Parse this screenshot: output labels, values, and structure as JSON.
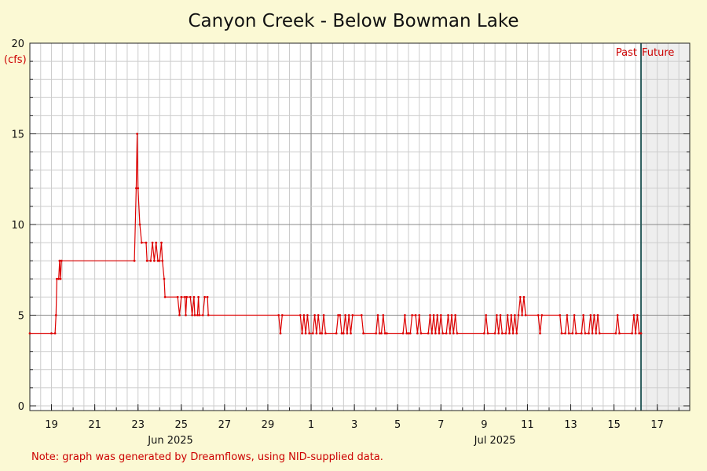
{
  "chart_data": {
    "type": "line",
    "title": "Canyon Creek - Below Bowman Lake",
    "ylabel": "(cfs)",
    "ylim": [
      0,
      20
    ],
    "yticks": [
      0,
      5,
      10,
      15,
      20
    ],
    "x_start": "2025-06-18",
    "x_end": "2025-07-18T12:00",
    "now": "2025-07-16T06:00",
    "past_label": "Past",
    "future_label": "Future",
    "x_tick_dates": [
      "2025-06-19",
      "2025-06-21",
      "2025-06-23",
      "2025-06-25",
      "2025-06-27",
      "2025-06-29",
      "2025-07-01",
      "2025-07-03",
      "2025-07-05",
      "2025-07-07",
      "2025-07-09",
      "2025-07-11",
      "2025-07-13",
      "2025-07-15",
      "2025-07-17"
    ],
    "x_tick_labels": [
      "19",
      "21",
      "23",
      "25",
      "27",
      "29",
      "1",
      "3",
      "5",
      "7",
      "9",
      "11",
      "13",
      "15",
      "17"
    ],
    "month_labels": [
      {
        "date": "2025-06-24T12:00",
        "label": "Jun 2025"
      },
      {
        "date": "2025-07-09T12:00",
        "label": "Jul 2025"
      }
    ],
    "grid": true,
    "series": [
      {
        "color": "#dd0000",
        "points": [
          [
            "2025-06-18T00:00",
            4
          ],
          [
            "2025-06-19T00:00",
            4
          ],
          [
            "2025-06-19T04:00",
            4
          ],
          [
            "2025-06-19T05:00",
            5
          ],
          [
            "2025-06-19T06:00",
            7
          ],
          [
            "2025-06-19T08:00",
            7
          ],
          [
            "2025-06-19T09:00",
            8
          ],
          [
            "2025-06-19T10:00",
            7
          ],
          [
            "2025-06-19T11:00",
            8
          ],
          [
            "2025-06-22T20:00",
            8
          ],
          [
            "2025-06-22T22:00",
            12
          ],
          [
            "2025-06-22T23:00",
            15
          ],
          [
            "2025-06-23T00:00",
            12
          ],
          [
            "2025-06-23T02:00",
            10
          ],
          [
            "2025-06-23T04:00",
            9
          ],
          [
            "2025-06-23T09:00",
            9
          ],
          [
            "2025-06-23T10:00",
            8
          ],
          [
            "2025-06-23T14:00",
            8
          ],
          [
            "2025-06-23T16:00",
            9
          ],
          [
            "2025-06-23T18:00",
            8
          ],
          [
            "2025-06-23T20:00",
            9
          ],
          [
            "2025-06-23T22:00",
            8
          ],
          [
            "2025-06-24T00:00",
            8
          ],
          [
            "2025-06-24T02:00",
            9
          ],
          [
            "2025-06-24T03:00",
            8
          ],
          [
            "2025-06-24T05:00",
            7
          ],
          [
            "2025-06-24T06:00",
            6
          ],
          [
            "2025-06-24T20:00",
            6
          ],
          [
            "2025-06-24T22:00",
            5
          ],
          [
            "2025-06-25T00:00",
            6
          ],
          [
            "2025-06-25T04:00",
            6
          ],
          [
            "2025-06-25T05:00",
            5
          ],
          [
            "2025-06-25T06:00",
            6
          ],
          [
            "2025-06-25T10:00",
            6
          ],
          [
            "2025-06-25T12:00",
            5
          ],
          [
            "2025-06-25T14:00",
            6
          ],
          [
            "2025-06-25T15:00",
            5
          ],
          [
            "2025-06-25T18:00",
            5
          ],
          [
            "2025-06-25T19:00",
            6
          ],
          [
            "2025-06-25T20:00",
            5
          ],
          [
            "2025-06-26T00:00",
            5
          ],
          [
            "2025-06-26T02:00",
            6
          ],
          [
            "2025-06-26T05:00",
            6
          ],
          [
            "2025-06-26T06:00",
            5
          ],
          [
            "2025-06-29T12:00",
            5
          ],
          [
            "2025-06-29T14:00",
            4
          ],
          [
            "2025-06-29T16:00",
            5
          ],
          [
            "2025-06-30T12:00",
            5
          ],
          [
            "2025-06-30T14:00",
            4
          ],
          [
            "2025-06-30T16:00",
            5
          ],
          [
            "2025-06-30T18:00",
            4
          ],
          [
            "2025-06-30T20:00",
            5
          ],
          [
            "2025-06-30T22:00",
            4
          ],
          [
            "2025-07-01T02:00",
            4
          ],
          [
            "2025-07-01T04:00",
            5
          ],
          [
            "2025-07-01T06:00",
            4
          ],
          [
            "2025-07-01T08:00",
            5
          ],
          [
            "2025-07-01T10:00",
            4
          ],
          [
            "2025-07-01T12:00",
            4
          ],
          [
            "2025-07-01T14:00",
            5
          ],
          [
            "2025-07-01T16:00",
            4
          ],
          [
            "2025-07-02T04:00",
            4
          ],
          [
            "2025-07-02T06:00",
            5
          ],
          [
            "2025-07-02T08:00",
            5
          ],
          [
            "2025-07-02T10:00",
            4
          ],
          [
            "2025-07-02T12:00",
            4
          ],
          [
            "2025-07-02T14:00",
            5
          ],
          [
            "2025-07-02T16:00",
            4
          ],
          [
            "2025-07-02T18:00",
            5
          ],
          [
            "2025-07-02T20:00",
            4
          ],
          [
            "2025-07-02T22:00",
            5
          ],
          [
            "2025-07-03T08:00",
            5
          ],
          [
            "2025-07-03T10:00",
            4
          ],
          [
            "2025-07-04T00:00",
            4
          ],
          [
            "2025-07-04T02:00",
            5
          ],
          [
            "2025-07-04T04:00",
            4
          ],
          [
            "2025-07-04T06:00",
            4
          ],
          [
            "2025-07-04T08:00",
            5
          ],
          [
            "2025-07-04T10:00",
            4
          ],
          [
            "2025-07-04T12:00",
            4
          ],
          [
            "2025-07-05T06:00",
            4
          ],
          [
            "2025-07-05T08:00",
            5
          ],
          [
            "2025-07-05T10:00",
            4
          ],
          [
            "2025-07-05T12:00",
            4
          ],
          [
            "2025-07-05T14:00",
            4
          ],
          [
            "2025-07-05T16:00",
            5
          ],
          [
            "2025-07-05T20:00",
            5
          ],
          [
            "2025-07-05T22:00",
            4
          ],
          [
            "2025-07-06T00:00",
            5
          ],
          [
            "2025-07-06T02:00",
            4
          ],
          [
            "2025-07-06T10:00",
            4
          ],
          [
            "2025-07-06T12:00",
            5
          ],
          [
            "2025-07-06T14:00",
            4
          ],
          [
            "2025-07-06T16:00",
            5
          ],
          [
            "2025-07-06T18:00",
            4
          ],
          [
            "2025-07-06T20:00",
            5
          ],
          [
            "2025-07-06T22:00",
            4
          ],
          [
            "2025-07-07T00:00",
            5
          ],
          [
            "2025-07-07T02:00",
            4
          ],
          [
            "2025-07-07T06:00",
            4
          ],
          [
            "2025-07-07T08:00",
            5
          ],
          [
            "2025-07-07T10:00",
            4
          ],
          [
            "2025-07-07T12:00",
            5
          ],
          [
            "2025-07-07T14:00",
            4
          ],
          [
            "2025-07-07T16:00",
            5
          ],
          [
            "2025-07-07T18:00",
            4
          ],
          [
            "2025-07-09T00:00",
            4
          ],
          [
            "2025-07-09T02:00",
            5
          ],
          [
            "2025-07-09T04:00",
            4
          ],
          [
            "2025-07-09T12:00",
            4
          ],
          [
            "2025-07-09T14:00",
            5
          ],
          [
            "2025-07-09T16:00",
            4
          ],
          [
            "2025-07-09T18:00",
            5
          ],
          [
            "2025-07-09T20:00",
            4
          ],
          [
            "2025-07-10T00:00",
            4
          ],
          [
            "2025-07-10T02:00",
            5
          ],
          [
            "2025-07-10T04:00",
            4
          ],
          [
            "2025-07-10T06:00",
            5
          ],
          [
            "2025-07-10T08:00",
            4
          ],
          [
            "2025-07-10T10:00",
            5
          ],
          [
            "2025-07-10T12:00",
            4
          ],
          [
            "2025-07-10T14:00",
            5
          ],
          [
            "2025-07-10T16:00",
            6
          ],
          [
            "2025-07-10T18:00",
            5
          ],
          [
            "2025-07-10T20:00",
            6
          ],
          [
            "2025-07-10T22:00",
            5
          ],
          [
            "2025-07-11T12:00",
            5
          ],
          [
            "2025-07-11T14:00",
            4
          ],
          [
            "2025-07-11T16:00",
            5
          ],
          [
            "2025-07-12T12:00",
            5
          ],
          [
            "2025-07-12T14:00",
            4
          ],
          [
            "2025-07-12T18:00",
            4
          ],
          [
            "2025-07-12T20:00",
            5
          ],
          [
            "2025-07-12T22:00",
            4
          ],
          [
            "2025-07-13T02:00",
            4
          ],
          [
            "2025-07-13T04:00",
            5
          ],
          [
            "2025-07-13T06:00",
            4
          ],
          [
            "2025-07-13T12:00",
            4
          ],
          [
            "2025-07-13T14:00",
            5
          ],
          [
            "2025-07-13T16:00",
            4
          ],
          [
            "2025-07-13T20:00",
            4
          ],
          [
            "2025-07-13T22:00",
            5
          ],
          [
            "2025-07-14T00:00",
            4
          ],
          [
            "2025-07-14T02:00",
            5
          ],
          [
            "2025-07-14T04:00",
            4
          ],
          [
            "2025-07-14T06:00",
            5
          ],
          [
            "2025-07-14T08:00",
            4
          ],
          [
            "2025-07-15T02:00",
            4
          ],
          [
            "2025-07-15T04:00",
            5
          ],
          [
            "2025-07-15T06:00",
            4
          ],
          [
            "2025-07-15T20:00",
            4
          ],
          [
            "2025-07-15T22:00",
            5
          ],
          [
            "2025-07-16T00:00",
            4
          ],
          [
            "2025-07-16T02:00",
            5
          ],
          [
            "2025-07-16T04:00",
            4
          ],
          [
            "2025-07-16T06:00",
            4
          ]
        ]
      }
    ]
  },
  "note": "Note: graph was generated by Dreamflows, using NID-supplied data."
}
